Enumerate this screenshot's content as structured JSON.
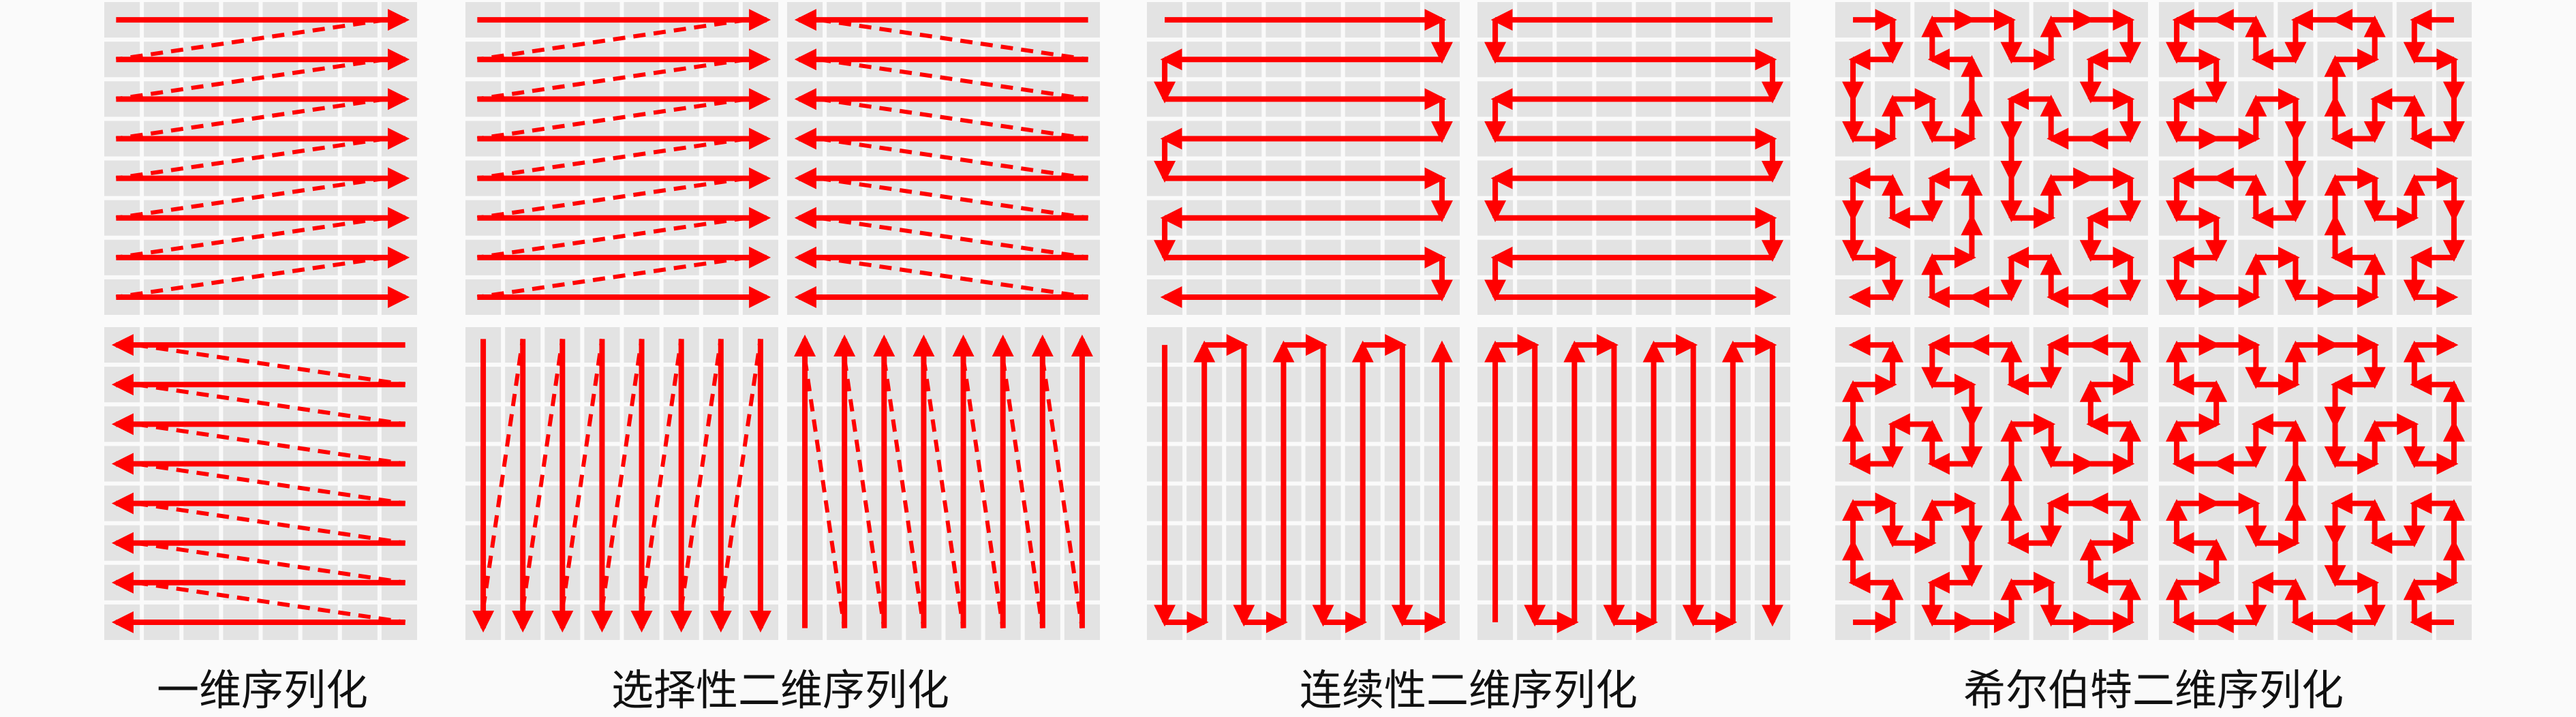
{
  "colors": {
    "arrow": "#ff0000",
    "tile": "#e3e3e3",
    "background": "#fafafa"
  },
  "grid_size": 8,
  "groups": [
    {
      "label": "一维序列化",
      "panels": [
        "row-lr",
        "row-rl"
      ]
    },
    {
      "label": "选择性二维序列化",
      "panels": [
        "row-lr",
        "row-rl",
        "col-tb",
        "col-bt"
      ]
    },
    {
      "label": "连续性二维序列化",
      "panels": [
        "snake-row-l",
        "snake-row-r",
        "snake-col-t",
        "snake-col-b"
      ]
    },
    {
      "label": "希尔伯特二维序列化",
      "panels": [
        "hilbert",
        "hilbert-flipx",
        "hilbert-flipy",
        "hilbert-flipxy"
      ]
    }
  ]
}
